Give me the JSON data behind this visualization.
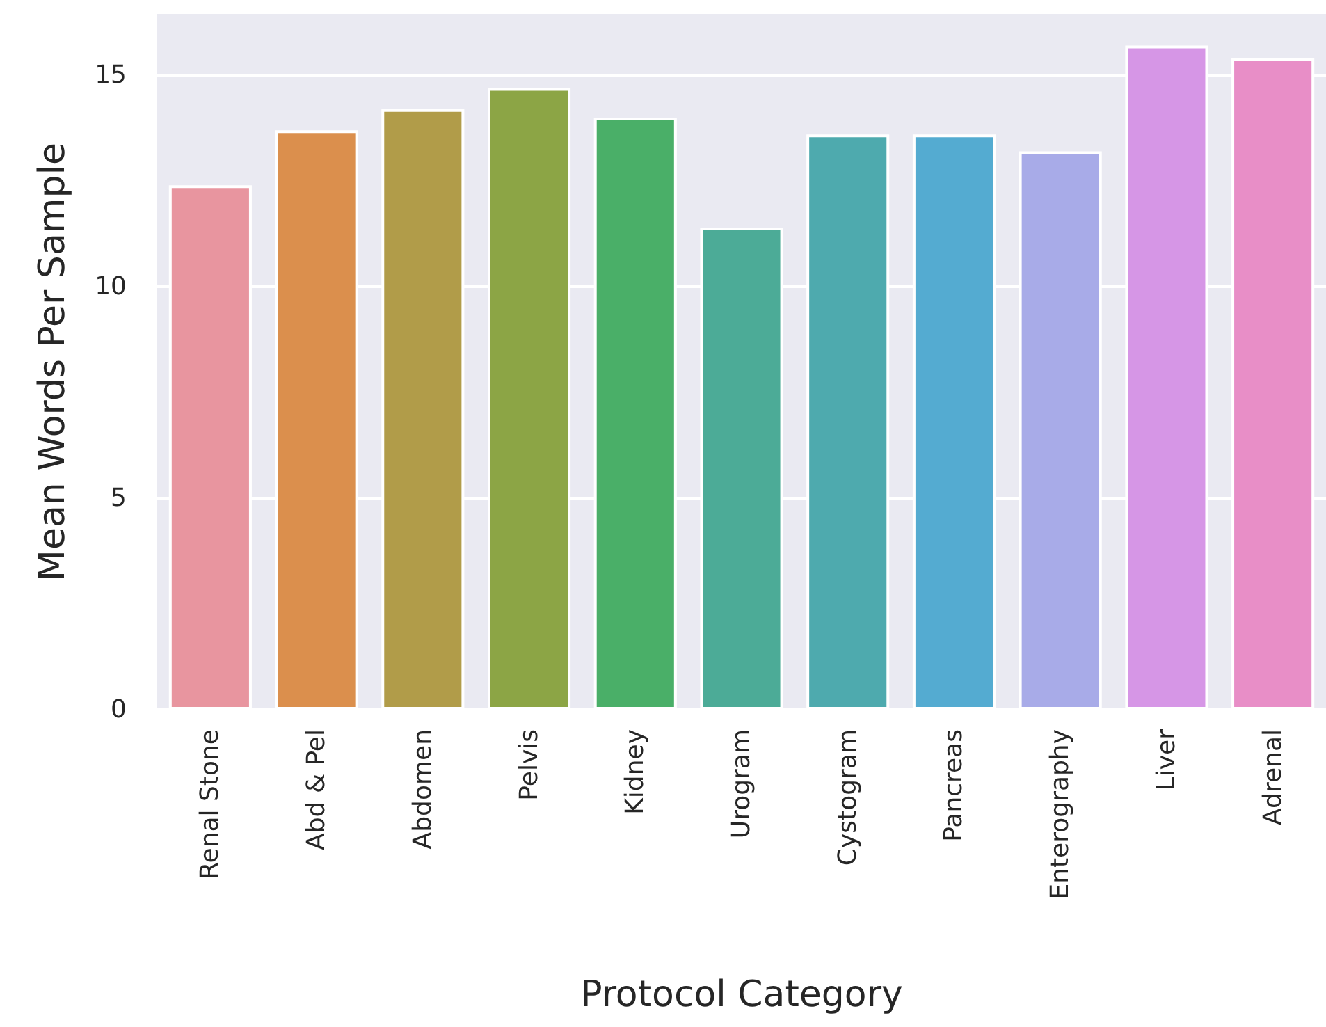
{
  "chart_data": {
    "type": "bar",
    "xlabel": "Protocol Category",
    "ylabel": "Mean Words Per Sample",
    "categories": [
      "Renal Stone",
      "Abd & Pel",
      "Abdomen",
      "Pelvis",
      "Kidney",
      "Urogram",
      "Cystogram",
      "Pancreas",
      "Enterography",
      "Liver",
      "Adrenal"
    ],
    "values": [
      12.4,
      13.7,
      14.2,
      14.7,
      14.0,
      11.4,
      13.6,
      13.6,
      13.2,
      15.7,
      15.4
    ],
    "colors": [
      "#e8959f",
      "#db8f4d",
      "#b19c49",
      "#8ca545",
      "#4aaf68",
      "#4cab97",
      "#4eaaae",
      "#54abd1",
      "#a8abe8",
      "#d696e6",
      "#e88ec7"
    ],
    "ylim": [
      0,
      16.45
    ],
    "yticks": [
      0,
      5,
      10,
      15
    ],
    "grid": "y"
  }
}
